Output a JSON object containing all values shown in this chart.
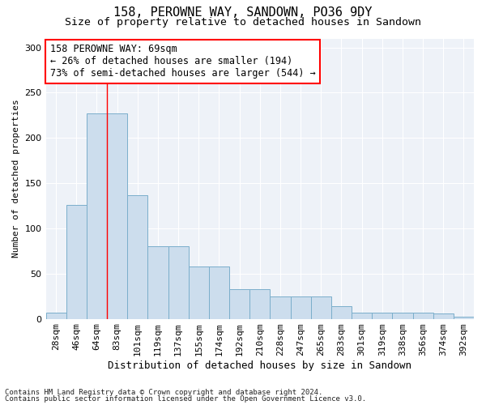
{
  "title1": "158, PEROWNE WAY, SANDOWN, PO36 9DY",
  "title2": "Size of property relative to detached houses in Sandown",
  "xlabel": "Distribution of detached houses by size in Sandown",
  "ylabel": "Number of detached properties",
  "categories": [
    "28sqm",
    "46sqm",
    "64sqm",
    "83sqm",
    "101sqm",
    "119sqm",
    "137sqm",
    "155sqm",
    "174sqm",
    "192sqm",
    "210sqm",
    "228sqm",
    "247sqm",
    "265sqm",
    "283sqm",
    "301sqm",
    "319sqm",
    "338sqm",
    "356sqm",
    "374sqm",
    "392sqm"
  ],
  "values": [
    7,
    126,
    227,
    227,
    137,
    80,
    80,
    58,
    58,
    33,
    33,
    25,
    25,
    25,
    14,
    7,
    7,
    7,
    7,
    6,
    2
  ],
  "bar_color": "#ccdded",
  "bar_edge_color": "#7aaecb",
  "red_line_x": 2.5,
  "annotation_text": "158 PEROWNE WAY: 69sqm\n← 26% of detached houses are smaller (194)\n73% of semi-detached houses are larger (544) →",
  "footnote1": "Contains HM Land Registry data © Crown copyright and database right 2024.",
  "footnote2": "Contains public sector information licensed under the Open Government Licence v3.0.",
  "ylim": [
    0,
    310
  ],
  "title1_fontsize": 11,
  "title2_fontsize": 9.5,
  "annotation_fontsize": 8.5,
  "tick_fontsize": 8,
  "xlabel_fontsize": 9,
  "ylabel_fontsize": 8,
  "footnote_fontsize": 6.5
}
